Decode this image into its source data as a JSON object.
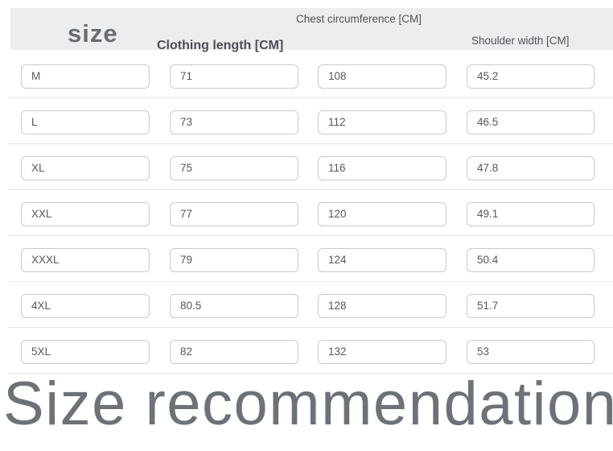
{
  "table": {
    "size_header": "size",
    "columns": {
      "clothing_length": "Clothing length [CM]",
      "chest_circumference": "Chest circumference [CM]",
      "shoulder_width": "Shoulder width [CM]"
    },
    "rows": [
      {
        "size": "M",
        "clothing_length": "71",
        "chest_circumference": "108",
        "shoulder_width": "45.2"
      },
      {
        "size": "L",
        "clothing_length": "73",
        "chest_circumference": "112",
        "shoulder_width": "46.5"
      },
      {
        "size": "XL",
        "clothing_length": "75",
        "chest_circumference": "116",
        "shoulder_width": "47.8"
      },
      {
        "size": "XXL",
        "clothing_length": "77",
        "chest_circumference": "120",
        "shoulder_width": "49.1"
      },
      {
        "size": "XXXL",
        "clothing_length": "79",
        "chest_circumference": "124",
        "shoulder_width": "50.4"
      },
      {
        "size": "4XL",
        "clothing_length": "80.5",
        "chest_circumference": "128",
        "shoulder_width": "51.7"
      },
      {
        "size": "5XL",
        "clothing_length": "82",
        "chest_circumference": "132",
        "shoulder_width": "53"
      }
    ]
  },
  "footer": {
    "title": "Size recommendation"
  },
  "colors": {
    "header_band_bg": "#ededed",
    "cell_border": "#c7cbcf",
    "divider": "#e4e7ea",
    "text_gray": "#53585e",
    "footer_gray": "#6d7278"
  }
}
